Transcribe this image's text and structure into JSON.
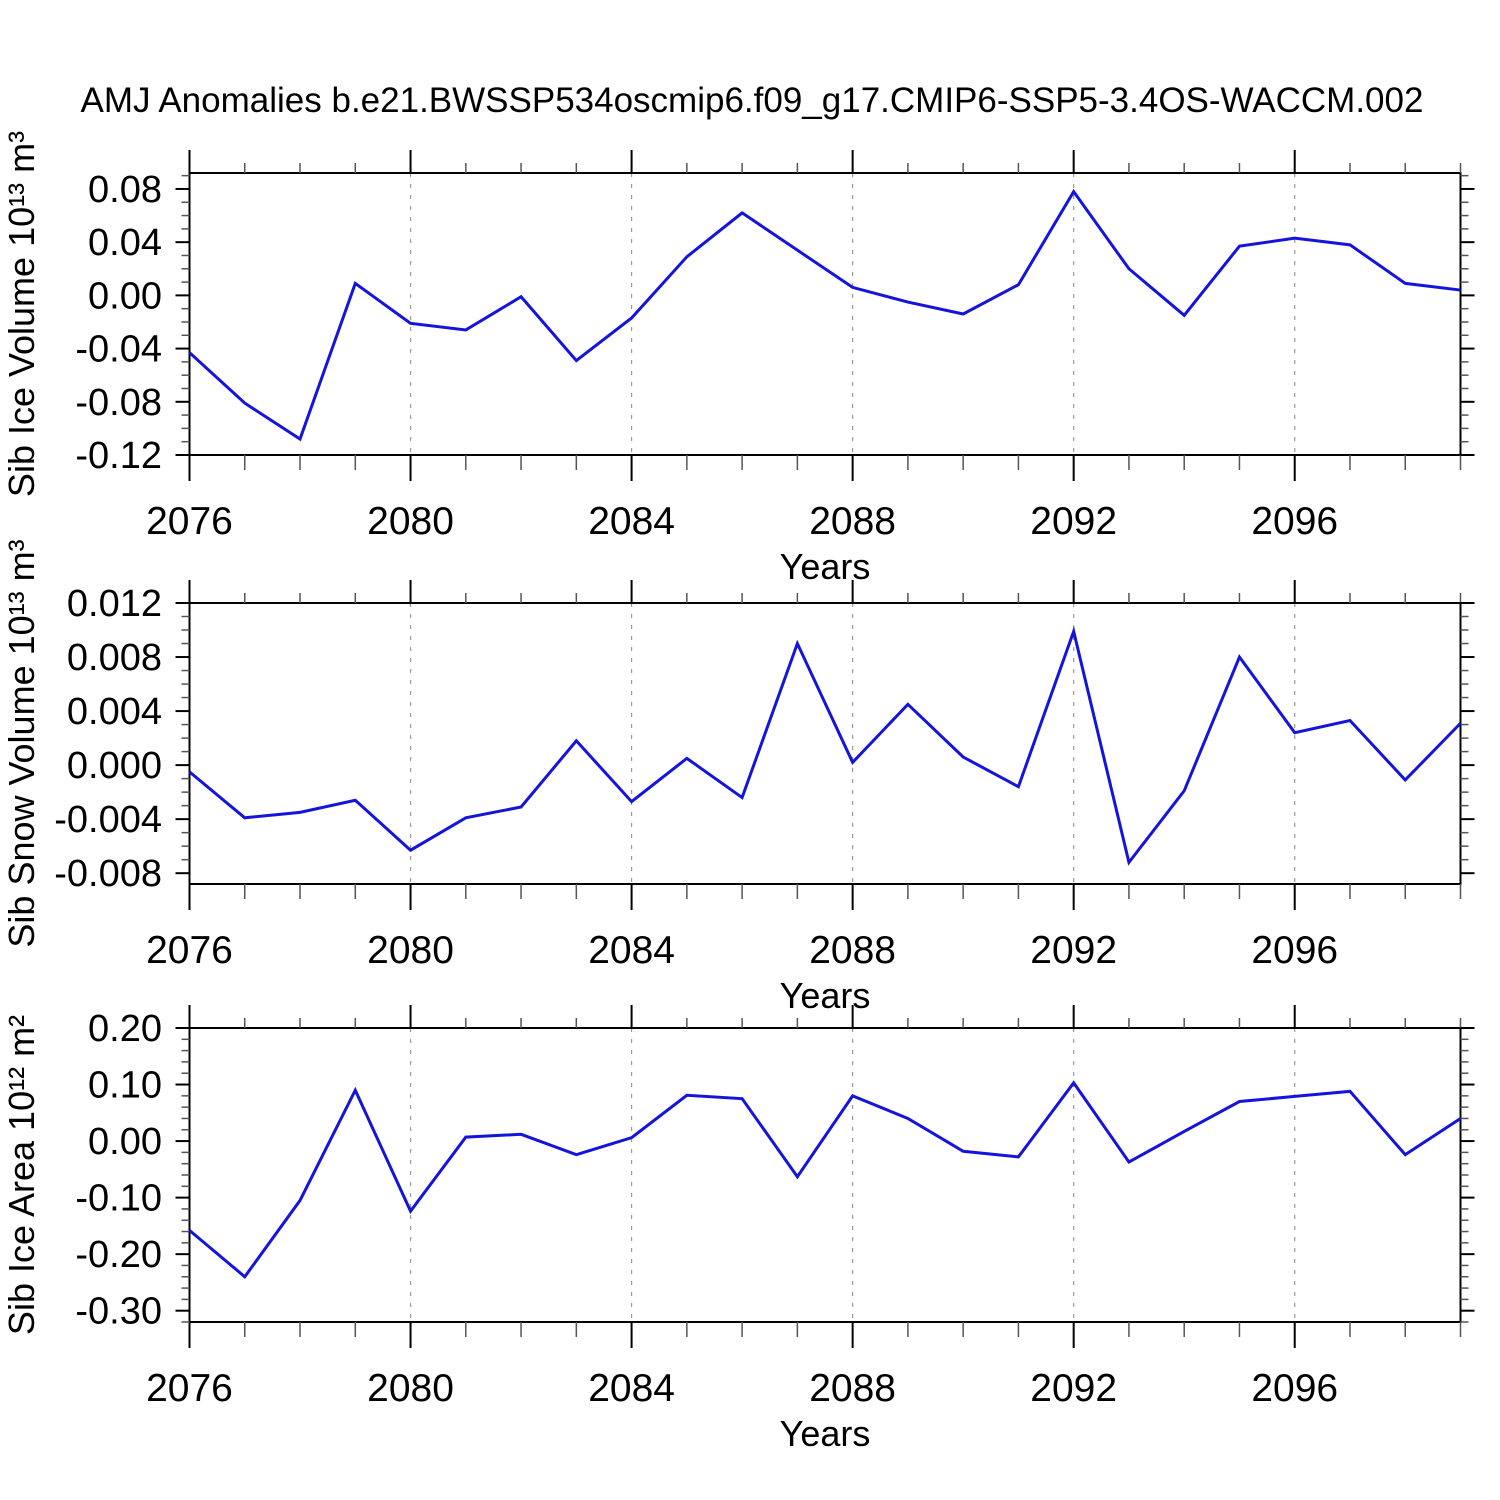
{
  "title": "AMJ Anomalies b.e21.BWSSP534oscmip6.f09_g17.CMIP6-SSP5-3.4OS-WACCM.002",
  "figure": {
    "background": "#ffffff",
    "line_color": "#1414dc",
    "frame_color": "#000000",
    "minor_tick_color": "#555555",
    "grid_color": "#999999",
    "text_color": "#000000"
  },
  "chart_data": [
    {
      "type": "line",
      "id": "ice-volume",
      "ylabel": "Sib Ice Volume 10¹³ m³",
      "xlabel": "Years",
      "x": [
        2076,
        2077,
        2078,
        2079,
        2080,
        2081,
        2082,
        2083,
        2084,
        2085,
        2086,
        2087,
        2088,
        2089,
        2090,
        2091,
        2092,
        2093,
        2094,
        2095,
        2096,
        2097,
        2098,
        2099
      ],
      "values": [
        -0.043,
        -0.081,
        -0.108,
        0.009,
        -0.021,
        -0.026,
        -0.001,
        -0.049,
        -0.017,
        0.029,
        0.062,
        0.034,
        0.006,
        -0.005,
        -0.014,
        0.008,
        0.078,
        0.02,
        -0.015,
        0.037,
        0.043,
        0.038,
        0.009,
        0.004
      ],
      "xlim": [
        2076,
        2099
      ],
      "ylim": [
        -0.12,
        0.092
      ],
      "ytick_values": [
        0.08,
        0.04,
        0.0,
        -0.04,
        -0.08,
        -0.12
      ],
      "ytick_labels": [
        "0.08",
        "0.04",
        "0.00",
        "-0.04",
        "-0.08",
        "-0.12"
      ],
      "y_minor_step": 0.01,
      "xtick_major_values": [
        2076,
        2080,
        2084,
        2088,
        2092,
        2096
      ],
      "xtick_major_labels": [
        "2076",
        "2080",
        "2084",
        "2088",
        "2092",
        "2096"
      ],
      "grid_x": [
        2080,
        2084,
        2088,
        2092,
        2096
      ],
      "grid": "vertical-dashed",
      "legend": "none"
    },
    {
      "type": "line",
      "id": "snow-volume",
      "ylabel": "Sib Snow Volume 10¹³ m³",
      "xlabel": "Years",
      "x": [
        2076,
        2077,
        2078,
        2079,
        2080,
        2081,
        2082,
        2083,
        2084,
        2085,
        2086,
        2087,
        2088,
        2089,
        2090,
        2091,
        2092,
        2093,
        2094,
        2095,
        2096,
        2097,
        2098,
        2099
      ],
      "values": [
        -0.0005,
        -0.0039,
        -0.0035,
        -0.0026,
        -0.0063,
        -0.0039,
        -0.0031,
        0.0018,
        -0.0027,
        0.0005,
        -0.0024,
        0.009,
        0.0002,
        0.0045,
        0.0006,
        -0.0016,
        0.0099,
        -0.0072,
        -0.0019,
        0.008,
        0.0024,
        0.0033,
        -0.0011,
        0.0031
      ],
      "xlim": [
        2076,
        2099
      ],
      "ylim": [
        -0.0088,
        0.012
      ],
      "ytick_values": [
        0.012,
        0.008,
        0.004,
        0.0,
        -0.004,
        -0.008
      ],
      "ytick_labels": [
        "0.012",
        "0.008",
        "0.004",
        "0.000",
        "-0.004",
        "-0.008"
      ],
      "y_minor_step": 0.001,
      "xtick_major_values": [
        2076,
        2080,
        2084,
        2088,
        2092,
        2096
      ],
      "xtick_major_labels": [
        "2076",
        "2080",
        "2084",
        "2088",
        "2092",
        "2096"
      ],
      "grid_x": [
        2080,
        2084,
        2088,
        2092,
        2096
      ],
      "grid": "vertical-dashed",
      "legend": "none"
    },
    {
      "type": "line",
      "id": "ice-area",
      "ylabel": "Sib Ice Area 10¹² m²",
      "xlabel": "Years",
      "x": [
        2076,
        2077,
        2078,
        2079,
        2080,
        2081,
        2082,
        2083,
        2084,
        2085,
        2086,
        2087,
        2088,
        2089,
        2090,
        2091,
        2092,
        2093,
        2094,
        2095,
        2096,
        2097,
        2098,
        2099
      ],
      "values": [
        -0.158,
        -0.24,
        -0.105,
        0.09,
        -0.124,
        0.007,
        0.012,
        -0.024,
        0.006,
        0.081,
        0.075,
        -0.063,
        0.08,
        0.04,
        -0.018,
        -0.028,
        0.103,
        -0.037,
        0.017,
        0.07,
        0.079,
        0.088,
        -0.024,
        0.04
      ],
      "xlim": [
        2076,
        2099
      ],
      "ylim": [
        -0.32,
        0.2
      ],
      "ytick_values": [
        0.2,
        0.1,
        0.0,
        -0.1,
        -0.2,
        -0.3
      ],
      "ytick_labels": [
        "0.20",
        "0.10",
        "0.00",
        "-0.10",
        "-0.20",
        "-0.30"
      ],
      "y_minor_step": 0.02,
      "xtick_major_values": [
        2076,
        2080,
        2084,
        2088,
        2092,
        2096
      ],
      "xtick_major_labels": [
        "2076",
        "2080",
        "2084",
        "2088",
        "2092",
        "2096"
      ],
      "grid_x": [
        2080,
        2084,
        2088,
        2092,
        2096
      ],
      "grid": "vertical-dashed",
      "legend": "none"
    }
  ]
}
